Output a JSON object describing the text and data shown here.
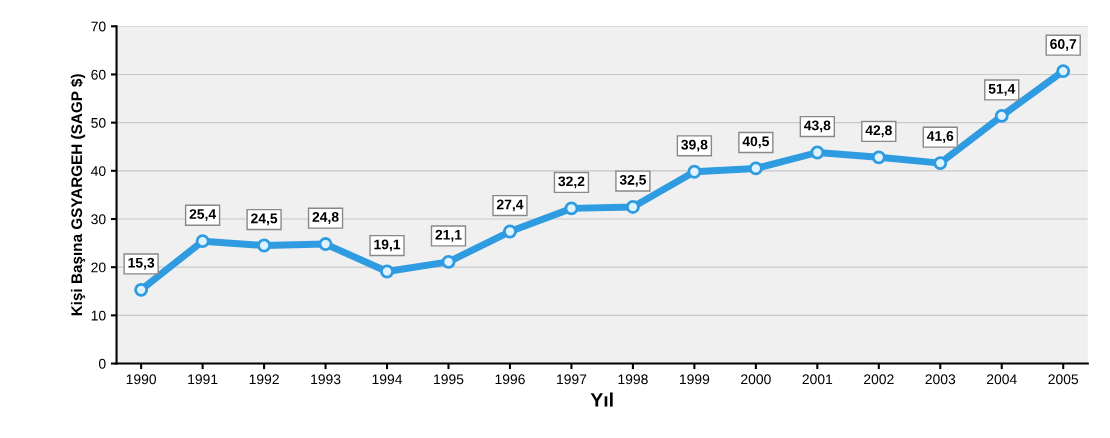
{
  "chart_data": {
    "type": "line",
    "xlabel": "Yıl",
    "ylabel": "Kişi Başına GSYARGEH (SAGP $)",
    "categories": [
      "1990",
      "1991",
      "1992",
      "1993",
      "1994",
      "1995",
      "1996",
      "1997",
      "1998",
      "1999",
      "2000",
      "2001",
      "2002",
      "2003",
      "2004",
      "2005"
    ],
    "series": [
      {
        "color": "#2f9be0",
        "values": [
          15.3,
          25.4,
          24.5,
          24.8,
          19.1,
          21.1,
          27.4,
          32.2,
          32.5,
          39.8,
          40.5,
          43.8,
          42.8,
          41.6,
          51.4,
          60.7
        ],
        "value_labels": [
          "15,3",
          "25,4",
          "24,5",
          "24,8",
          "19,1",
          "21,1",
          "27,4",
          "32,2",
          "32,5",
          "39,8",
          "40,5",
          "43,8",
          "42,8",
          "41,6",
          "51,4",
          "60,7"
        ]
      }
    ],
    "ylim": [
      0,
      70
    ],
    "yticks": [
      0,
      10,
      20,
      30,
      40,
      50,
      60,
      70
    ],
    "grid": "y",
    "marker": "circle",
    "line_style": "solid"
  }
}
